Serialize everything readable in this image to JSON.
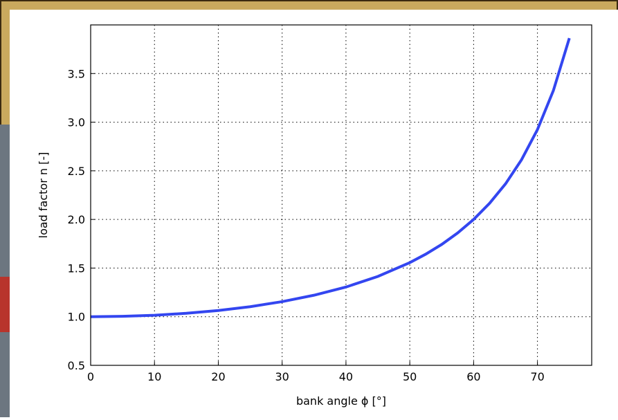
{
  "chart_data": {
    "type": "line",
    "x_label": "bank angle ϕ [°]",
    "y_label": "load factor n [-]",
    "x": [
      0,
      5,
      10,
      15,
      20,
      25,
      30,
      35,
      40,
      45,
      50,
      52.5,
      55,
      57.5,
      60,
      62.5,
      65,
      67.5,
      70,
      72.5,
      75
    ],
    "series": [
      {
        "color": "#3346f0",
        "values": [
          1.0,
          1.004,
          1.015,
          1.035,
          1.064,
          1.103,
          1.155,
          1.221,
          1.305,
          1.414,
          1.556,
          1.643,
          1.743,
          1.861,
          2.0,
          2.166,
          2.366,
          2.613,
          2.924,
          3.326,
          3.864
        ]
      }
    ],
    "xlim": [
      0,
      78.5
    ],
    "ylim": [
      0.5,
      4.0
    ],
    "xticks": [
      0,
      10,
      20,
      30,
      40,
      50,
      60,
      70
    ],
    "yticks": [
      0.5,
      {
        "value": 1,
        "label": "1.0"
      },
      1.5,
      {
        "value": 2,
        "label": "2.0"
      },
      2.5,
      {
        "value": 3,
        "label": "3.0"
      },
      3.5
    ],
    "grid": true
  }
}
